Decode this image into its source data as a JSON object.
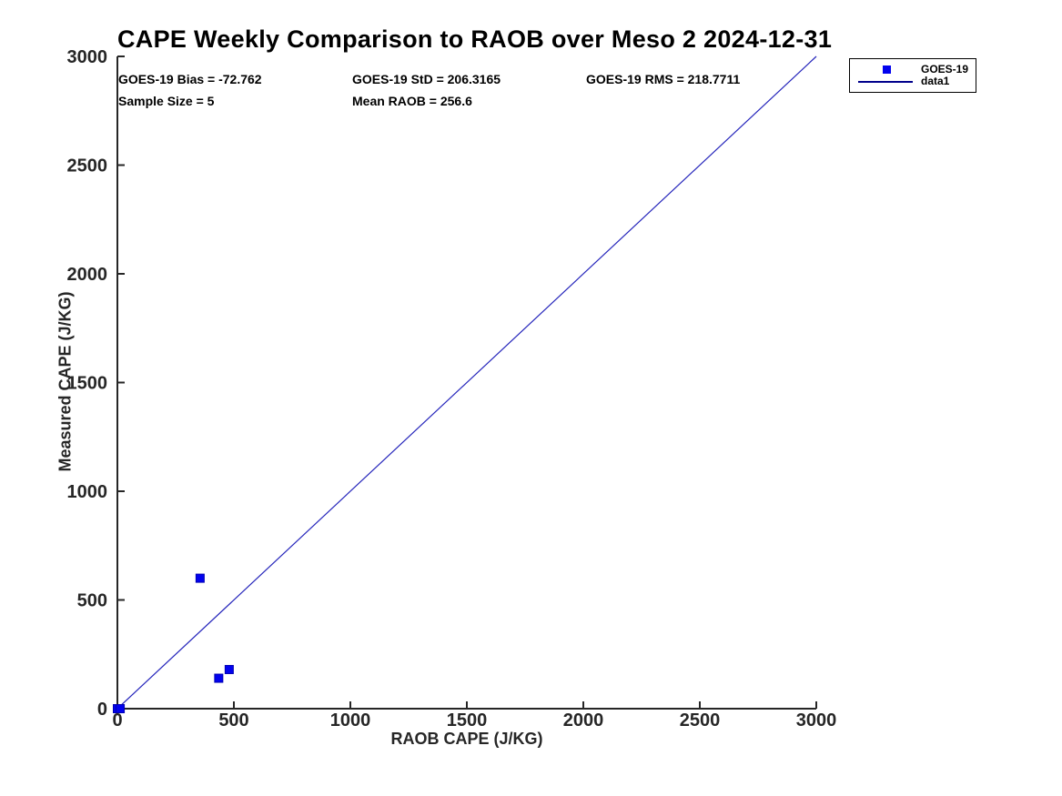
{
  "chart_data": {
    "type": "scatter",
    "title": "CAPE Weekly Comparison to RAOB over Meso 2 2024-12-31",
    "xlabel": "RAOB CAPE (J/KG)",
    "ylabel": "Measured CAPE (J/KG)",
    "xlim": [
      0,
      3000
    ],
    "ylim": [
      0,
      3000
    ],
    "xticks": [
      0,
      500,
      1000,
      1500,
      2000,
      2500,
      3000
    ],
    "yticks": [
      0,
      500,
      1000,
      1500,
      2000,
      2500,
      3000
    ],
    "grid": false,
    "legend": {
      "position": "top-right-outside",
      "items": [
        {
          "label": "GOES-19",
          "swatch": "square-marker",
          "color": "#0202ee"
        },
        {
          "label": "data1",
          "swatch": "line",
          "color": "#00008b"
        }
      ]
    },
    "series": [
      {
        "name": "GOES-19",
        "type": "scatter",
        "marker": "filled-square",
        "color": "#0202ee",
        "points": [
          [
            0,
            0
          ],
          [
            12,
            0
          ],
          [
            355,
            600
          ],
          [
            435,
            140
          ],
          [
            480,
            180
          ]
        ]
      },
      {
        "name": "data1",
        "type": "line",
        "color": "#2525bb",
        "points": [
          [
            0,
            0
          ],
          [
            3000,
            3000
          ]
        ]
      }
    ],
    "annotations": {
      "bias": "GOES-19 Bias = -72.762",
      "std": "GOES-19 StD = 206.3165",
      "rms": "GOES-19 RMS = 218.7711",
      "sample_size": "Sample Size = 5",
      "mean_raob": "Mean RAOB = 256.6"
    }
  },
  "colors": {
    "marker_blue": "#0202ee",
    "marker_edge_blue": "#0000b4",
    "line_blue": "#2525bb",
    "legend_line_blue": "#00008b",
    "axis_color": "#262626",
    "text_black": "#000000",
    "background": "#ffffff"
  }
}
